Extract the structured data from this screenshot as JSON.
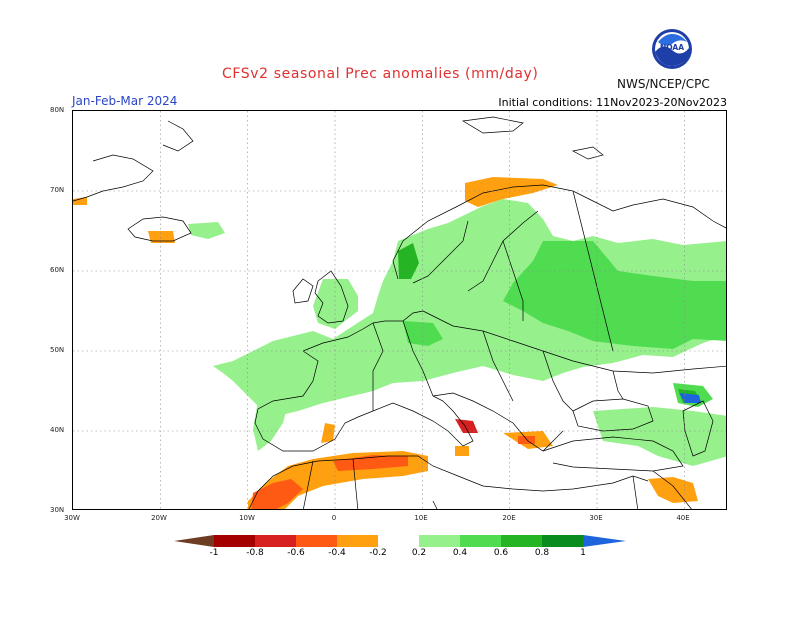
{
  "header": {
    "title": "CFSv2 seasonal Prec anomalies (mm/day)",
    "period": "Jan-Feb-Mar 2024",
    "initial_conditions": "Initial conditions: 11Nov2023-20Nov2023",
    "agency": "NWS/NCEP/CPC",
    "logo_text": "NOAA",
    "logo_icon": "noaa-logo-icon"
  },
  "map": {
    "lat_labels": [
      "80N",
      "70N",
      "60N",
      "50N",
      "40N",
      "30N"
    ],
    "lon_labels": [
      "30W",
      "20W",
      "10W",
      "0",
      "10E",
      "20E",
      "30E",
      "40E"
    ],
    "extent": {
      "lon": [
        -30,
        45
      ],
      "lat": [
        30,
        80
      ]
    }
  },
  "colorbar": {
    "labels": [
      "-1",
      "-0.8",
      "-0.6",
      "-0.4",
      "-0.2",
      "0.2",
      "0.4",
      "0.6",
      "0.8",
      "1"
    ],
    "colors": {
      "below_minus_1": "#6e3b23",
      "m1_m08": "#a50000",
      "m08_m06": "#d72020",
      "m06_m04": "#ff5a14",
      "m04_m02": "#ffa010",
      "p02_p04": "#96f08c",
      "p04_p06": "#50dc50",
      "p06_p08": "#24b424",
      "p08_p1": "#0a8c1e",
      "above_1": "#1e64dc"
    }
  }
}
